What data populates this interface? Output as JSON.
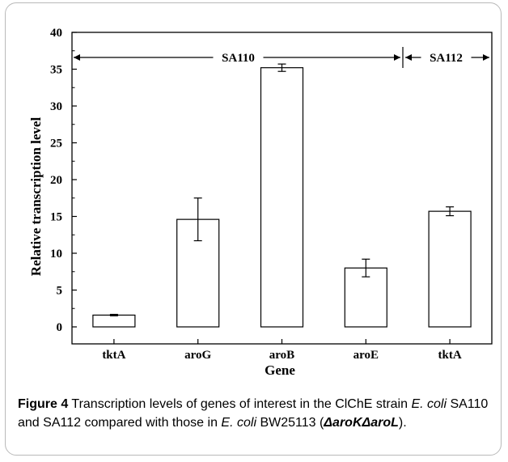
{
  "chart_data": {
    "type": "bar",
    "categories": [
      "tktA",
      "aroG",
      "aroB",
      "aroE",
      "tktA"
    ],
    "values": [
      1.6,
      14.6,
      35.2,
      8.0,
      15.7
    ],
    "errors": [
      0.1,
      2.9,
      0.5,
      1.2,
      0.6
    ],
    "xlabel": "Gene",
    "ylabel": "Relative transcription level",
    "ylim": [
      0,
      40
    ],
    "yticks": [
      0,
      5,
      10,
      15,
      20,
      25,
      30,
      35,
      40
    ],
    "grid": false,
    "annotations": [
      {
        "label": "SA110",
        "category_span": [
          0,
          3
        ]
      },
      {
        "label": "SA112",
        "category_span": [
          4,
          4
        ]
      }
    ]
  },
  "caption": {
    "label": "Figure 4",
    "text_1": " Transcription levels of genes of interest in the ClChE strain ",
    "italic_1": "E. coli",
    "text_2": " SA110 and SA112 compared with those in ",
    "italic_2": "E. coli",
    "text_3": " BW25113 (",
    "bold_italic": "ΔaroKΔaroL",
    "text_4": ")."
  }
}
